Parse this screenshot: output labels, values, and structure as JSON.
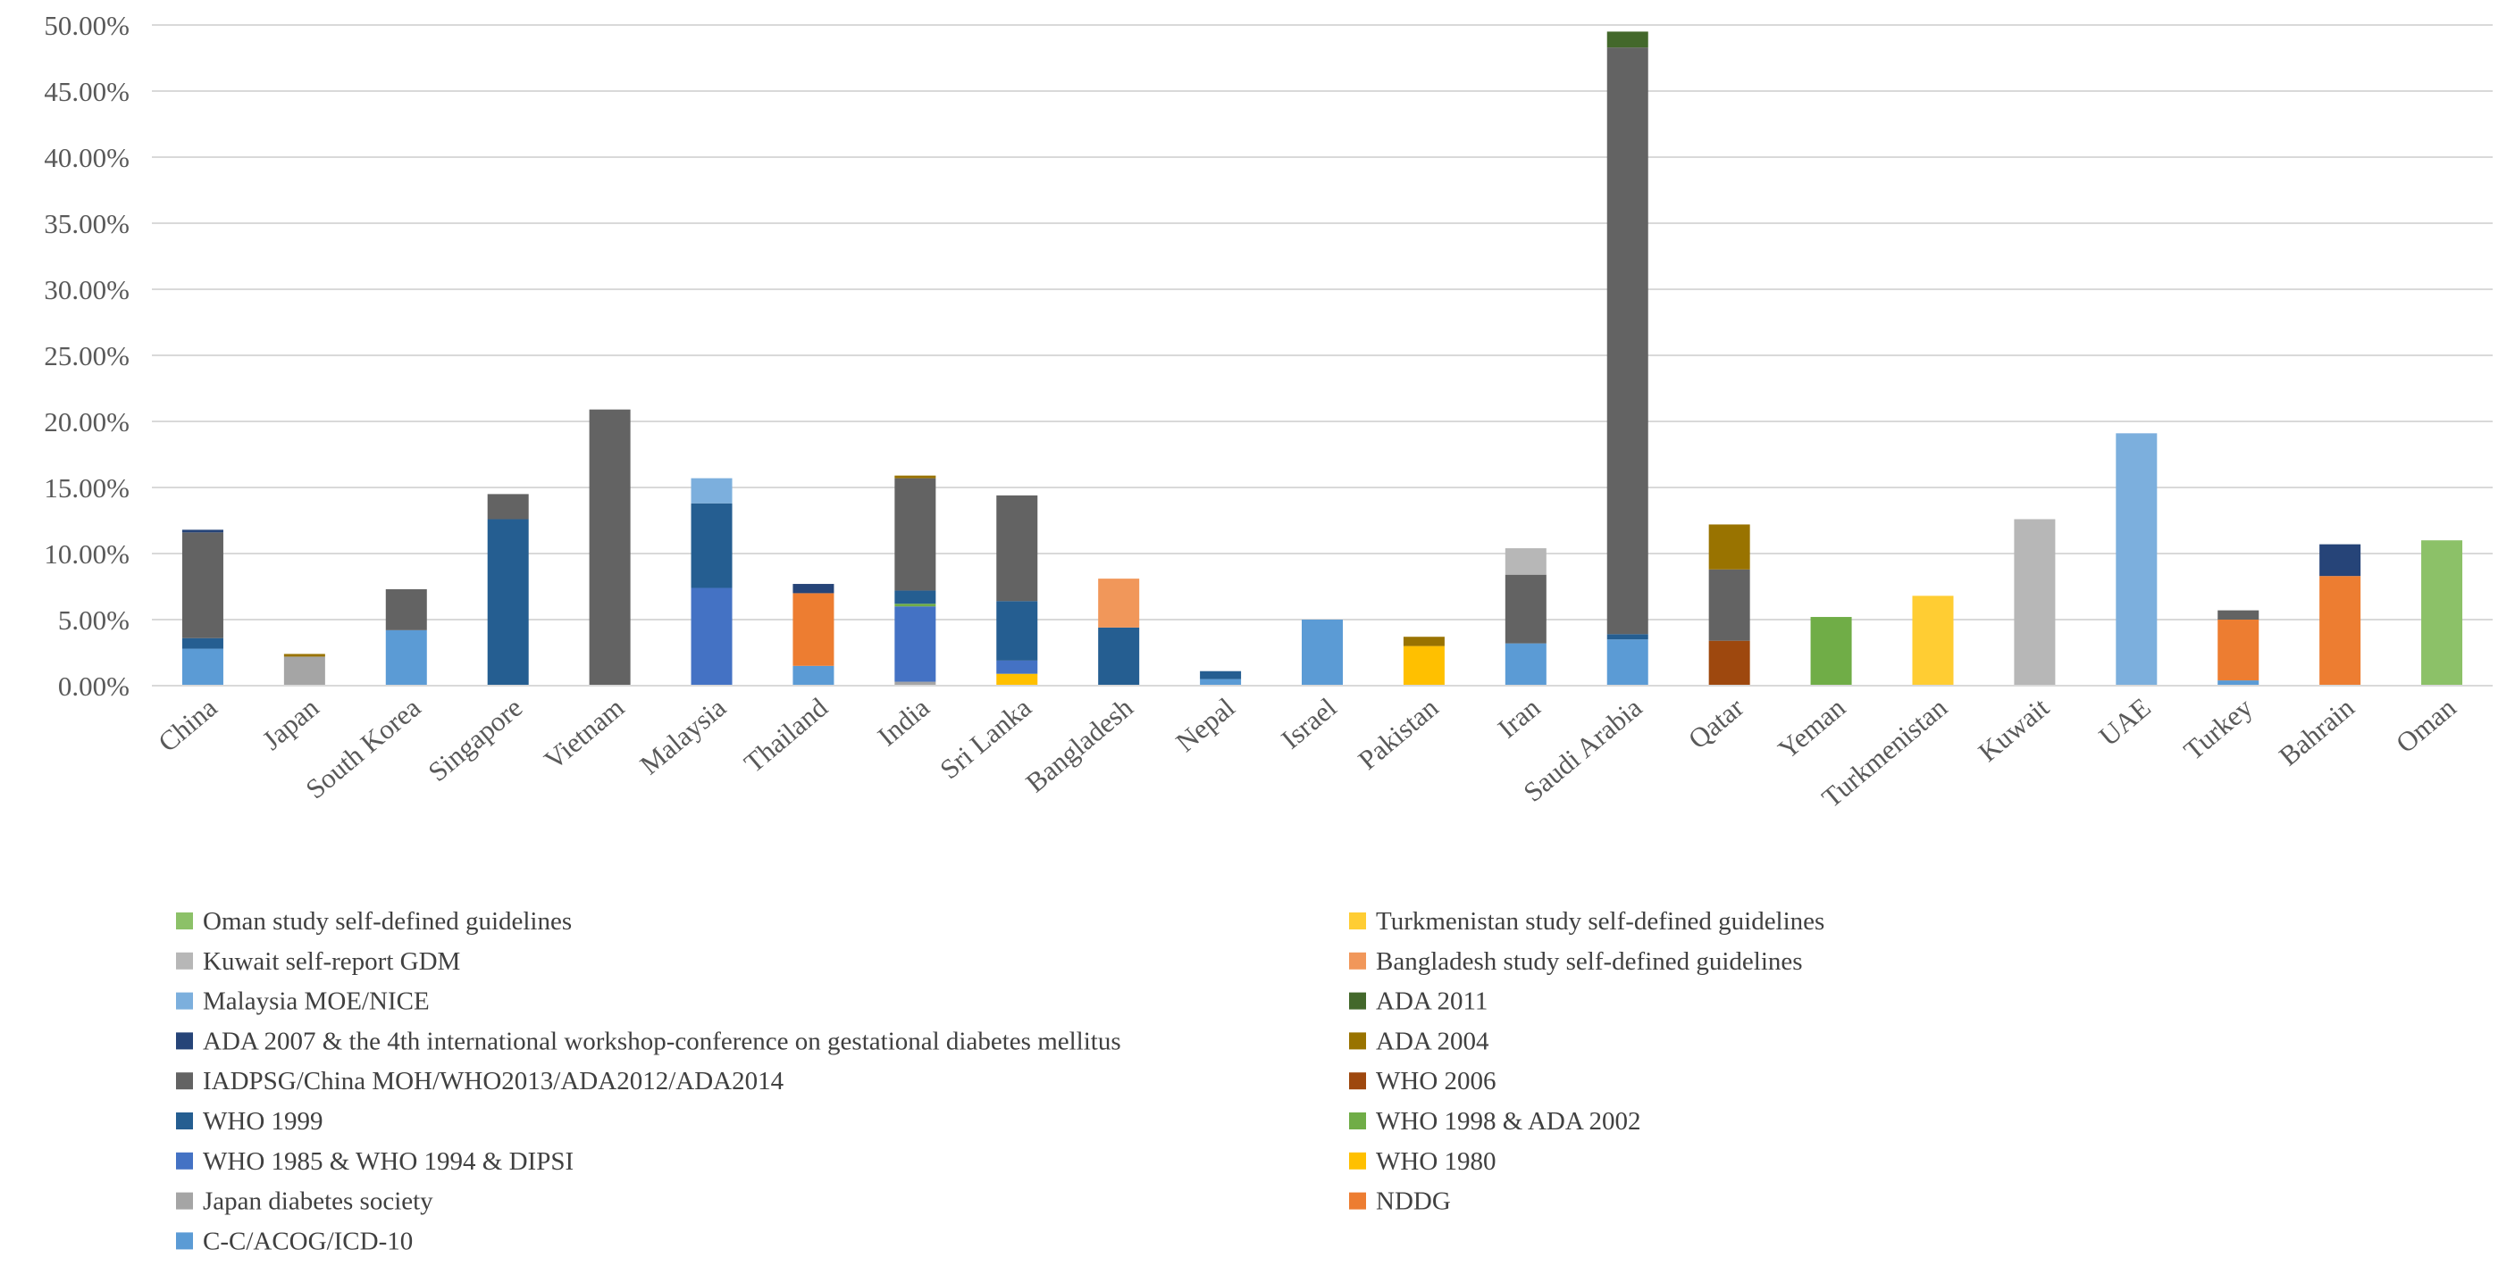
{
  "chart_data": {
    "type": "stacked-bar",
    "title": "",
    "xlabel": "",
    "ylabel": "",
    "ylim": [
      0,
      50
    ],
    "y_ticks": [
      0,
      5,
      10,
      15,
      20,
      25,
      30,
      35,
      40,
      45,
      50
    ],
    "y_tick_labels": [
      "0.00%",
      "5.00%",
      "10.00%",
      "15.00%",
      "20.00%",
      "25.00%",
      "30.00%",
      "35.00%",
      "40.00%",
      "45.00%",
      "50.00%"
    ],
    "grid": true,
    "legend_position": "bottom",
    "categories": [
      "China",
      "Japan",
      "South Korea",
      "Singapore",
      "Vietnam",
      "Malaysia",
      "Thailand",
      "India",
      "Sri Lanka",
      "Bangladesh",
      "Nepal",
      "Israel",
      "Pakistan",
      "Iran",
      "Saudi Arabia",
      "Qatar",
      "Yeman",
      "Turkmenistan",
      "Kuwait",
      "UAE",
      "Turkey",
      "Bahrain",
      "Oman"
    ],
    "series": [
      {
        "name": "C-C/ACOG/ICD-10",
        "color": "#5B9BD5",
        "values": [
          2.8,
          0,
          4.2,
          0,
          0,
          0,
          1.5,
          0,
          0,
          0,
          0.5,
          5.0,
          0,
          3.2,
          3.5,
          0,
          0,
          0,
          0,
          0,
          0.4,
          0,
          0
        ]
      },
      {
        "name": "Japan diabetes society",
        "color": "#A5A5A5",
        "values": [
          0,
          2.2,
          0,
          0,
          0,
          0,
          0,
          0.3,
          0,
          0,
          0,
          0,
          0,
          0,
          0,
          0,
          0,
          0,
          0,
          0,
          0,
          0,
          0
        ]
      },
      {
        "name": "NDDG",
        "color": "#ED7D31",
        "values": [
          0,
          0,
          0,
          0,
          0,
          0,
          5.5,
          0,
          0,
          0,
          0,
          0,
          0,
          0,
          0,
          0,
          0,
          0,
          0,
          0,
          4.6,
          8.3,
          0
        ]
      },
      {
        "name": "WHO 1980",
        "color": "#FFC000",
        "values": [
          0,
          0,
          0,
          0,
          0,
          0,
          0,
          0,
          0.9,
          0,
          0,
          0,
          3.0,
          0,
          0,
          0,
          0,
          0,
          0,
          0,
          0,
          0,
          0
        ]
      },
      {
        "name": "WHO 1985 & WHO 1994 & DIPSI",
        "color": "#4472C4",
        "values": [
          0,
          0,
          0,
          0,
          0,
          7.4,
          0,
          5.7,
          1.0,
          0,
          0,
          0,
          0,
          0,
          0,
          0,
          0,
          0,
          0,
          0,
          0,
          0,
          0
        ]
      },
      {
        "name": "WHO 1998 & ADA 2002",
        "color": "#70AD47",
        "values": [
          0,
          0,
          0,
          0,
          0,
          0,
          0,
          0.2,
          0,
          0,
          0,
          0,
          0,
          0,
          0,
          0,
          5.2,
          0,
          0,
          0,
          0,
          0,
          0
        ]
      },
      {
        "name": "WHO 1999",
        "color": "#255E91",
        "values": [
          0.8,
          0,
          0,
          12.6,
          0,
          6.4,
          0,
          1.0,
          4.5,
          4.4,
          0.6,
          0,
          0,
          0,
          0.4,
          0,
          0,
          0,
          0,
          0,
          0,
          0,
          0
        ]
      },
      {
        "name": "WHO 2006",
        "color": "#9E480E",
        "values": [
          0,
          0,
          0,
          0,
          0,
          0,
          0,
          0,
          0,
          0,
          0,
          0,
          0,
          0,
          0,
          3.4,
          0,
          0,
          0,
          0,
          0,
          0,
          0
        ]
      },
      {
        "name": "IADPSG/China MOH/WHO2013/ADA2012/ADA2014",
        "color": "#636363",
        "values": [
          8.0,
          0,
          3.1,
          1.9,
          20.9,
          0,
          0,
          8.5,
          8.0,
          0,
          0,
          0,
          0,
          5.2,
          44.4,
          5.4,
          0,
          0,
          0,
          0,
          0.7,
          0,
          0
        ]
      },
      {
        "name": "ADA 2004",
        "color": "#997300",
        "values": [
          0,
          0.2,
          0,
          0,
          0,
          0,
          0,
          0.2,
          0,
          0,
          0,
          0,
          0.7,
          0,
          0,
          3.4,
          0,
          0,
          0,
          0,
          0,
          0,
          0
        ]
      },
      {
        "name": "ADA 2007 & the 4th international workshop-conference on gestational diabetes mellitus",
        "color": "#264478",
        "values": [
          0.2,
          0,
          0,
          0,
          0,
          0,
          0.7,
          0,
          0,
          0,
          0,
          0,
          0,
          0,
          0,
          0,
          0,
          0,
          0,
          0,
          0,
          2.4,
          0
        ]
      },
      {
        "name": "ADA 2011",
        "color": "#43682B",
        "values": [
          0,
          0,
          0,
          0,
          0,
          0,
          0,
          0,
          0,
          0,
          0,
          0,
          0,
          0,
          1.2,
          0,
          0,
          0,
          0,
          0,
          0,
          0,
          0
        ]
      },
      {
        "name": "Malaysia MOE/NICE",
        "color": "#7CAFDD",
        "values": [
          0,
          0,
          0,
          0,
          0,
          1.9,
          0,
          0,
          0,
          0,
          0,
          0,
          0,
          0,
          0,
          0,
          0,
          0,
          0,
          19.1,
          0,
          0,
          0
        ]
      },
      {
        "name": "Kuwait self-report GDM",
        "color": "#B7B7B7",
        "values": [
          0,
          0,
          0,
          0,
          0,
          0,
          0,
          0,
          0,
          0,
          0,
          0,
          0,
          2.0,
          0,
          0,
          0,
          0,
          12.6,
          0,
          0,
          0,
          0
        ]
      },
      {
        "name": "Bangladesh study self-defined guidelines",
        "color": "#F1975A",
        "values": [
          0,
          0,
          0,
          0,
          0,
          0,
          0,
          0,
          0,
          3.7,
          0,
          0,
          0,
          0,
          0,
          0,
          0,
          0,
          0,
          0,
          0,
          0,
          0
        ]
      },
      {
        "name": "Turkmenistan study self-defined guidelines",
        "color": "#FFCD33",
        "values": [
          0,
          0,
          0,
          0,
          0,
          0,
          0,
          0,
          0,
          0,
          0,
          0,
          0,
          0,
          0,
          0,
          0,
          6.8,
          0,
          0,
          0,
          0,
          0
        ]
      },
      {
        "name": "Oman study self-defined guidelines",
        "color": "#8CC168",
        "values": [
          0,
          0,
          0,
          0,
          0,
          0,
          0,
          0,
          0,
          0,
          0,
          0,
          0,
          0,
          0,
          0,
          0,
          0,
          0,
          0,
          0,
          0,
          11.0
        ]
      }
    ],
    "legend_left": [
      "Oman study self-defined guidelines",
      "Kuwait self-report GDM",
      "Malaysia MOE/NICE",
      "ADA 2007 & the 4th international workshop-conference on gestational diabetes mellitus",
      "IADPSG/China MOH/WHO2013/ADA2012/ADA2014",
      "WHO 1999",
      "WHO 1985 & WHO 1994 & DIPSI",
      "Japan diabetes society",
      "C-C/ACOG/ICD-10"
    ],
    "legend_right": [
      "Turkmenistan study self-defined guidelines",
      "Bangladesh study self-defined guidelines",
      "ADA 2011",
      "ADA 2004",
      "WHO 2006",
      "WHO 1998 & ADA 2002",
      "WHO 1980",
      "NDDG"
    ]
  }
}
